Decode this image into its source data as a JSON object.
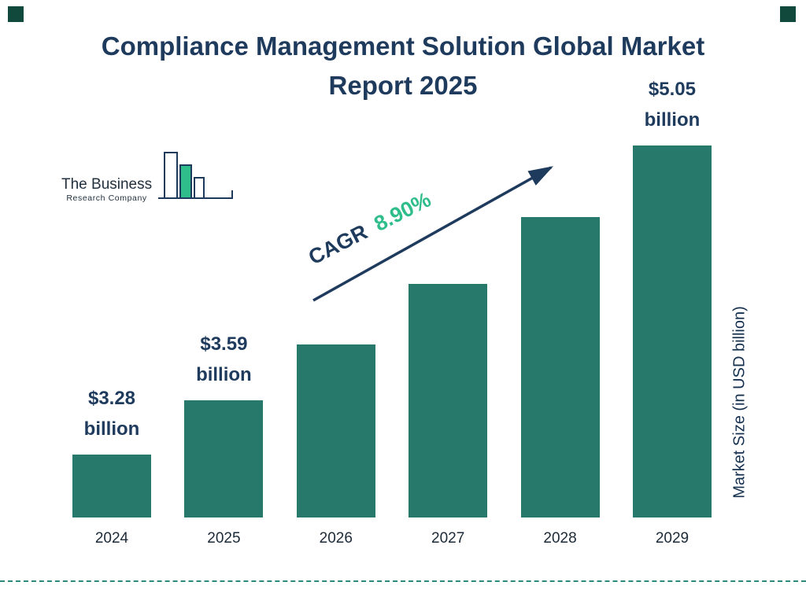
{
  "page": {
    "title": "Compliance Management Solution Global Market Report 2025"
  },
  "logo": {
    "line1": "The Business",
    "line2": "Research Company"
  },
  "cagr": {
    "label": "CAGR",
    "value": "8.90%"
  },
  "colors": {
    "navy": "#1e3a5c",
    "green": "#2fbd8b",
    "bar": "#26796b",
    "dashed_line": "#2c8a7a"
  },
  "chart_data": {
    "type": "bar",
    "title": "Compliance Management Solution Global Market Report 2025",
    "categories": [
      "2024",
      "2025",
      "2026",
      "2027",
      "2028",
      "2029"
    ],
    "values": [
      3.28,
      3.59,
      3.91,
      4.26,
      4.64,
      5.05
    ],
    "bar_labels": [
      "$3.28 billion",
      "$3.59 billion",
      null,
      null,
      null,
      "$5.05 billion"
    ],
    "cagr": "8.90%",
    "xlabel": "",
    "ylabel": "Market Size (in USD billion)",
    "bar_color": "#26796b",
    "grid": false,
    "legend": false
  }
}
